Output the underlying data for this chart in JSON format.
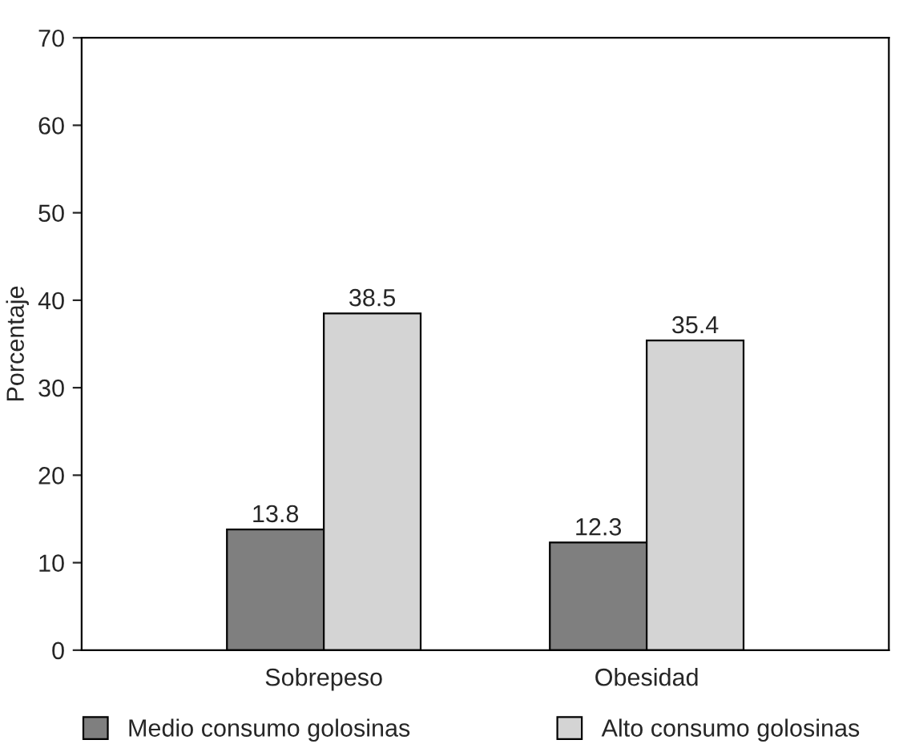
{
  "chart_data": {
    "type": "bar",
    "ylabel": "Porcentaje",
    "categories": [
      "Sobrepeso",
      "Obesidad"
    ],
    "series": [
      {
        "name": "Medio consumo golosinas",
        "color": "#7f7f7f",
        "values": [
          13.8,
          12.3
        ]
      },
      {
        "name": "Alto consumo golosinas",
        "color": "#d4d4d4",
        "values": [
          38.5,
          35.4
        ]
      }
    ],
    "ylim": [
      0,
      70
    ],
    "yticks": [
      0,
      10,
      20,
      30,
      40,
      50,
      60,
      70
    ],
    "data_labels": true,
    "grid": false,
    "legend": "bottom"
  }
}
